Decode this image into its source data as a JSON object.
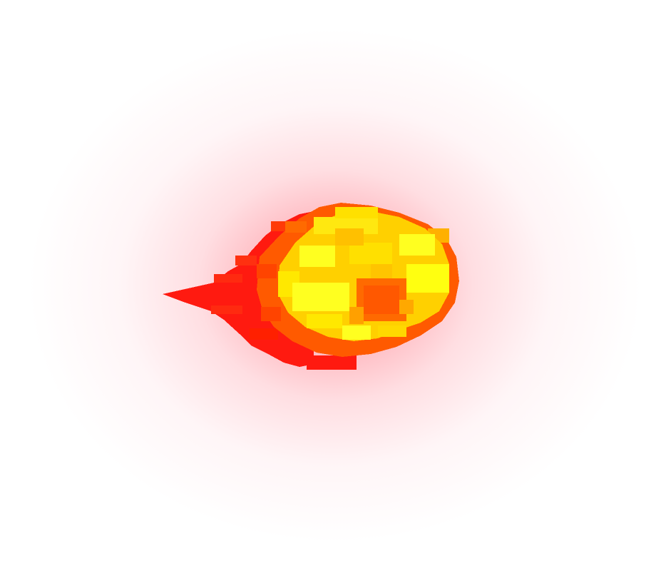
{
  "scene": {
    "sprite": "fireball-icon",
    "colors": {
      "background": "#ffffff",
      "glow": "#ff2a3c",
      "flame_outer": "#ff1a10",
      "flame_mid": "#ff5a00",
      "flame_core": "#ffd000",
      "flame_highlight": "#ffff20",
      "ember": "#ff6a00"
    }
  }
}
